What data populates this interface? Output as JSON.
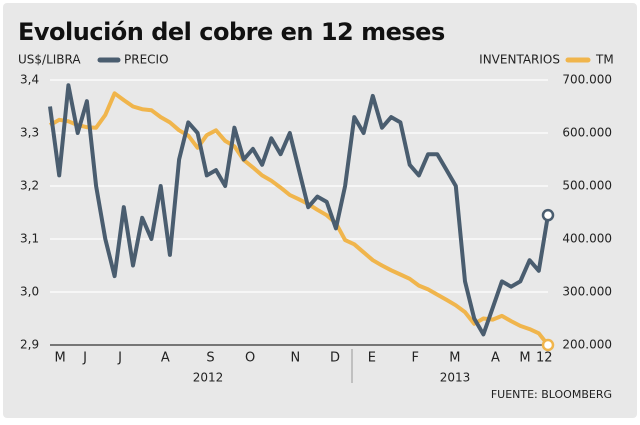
{
  "chart_data": {
    "type": "line",
    "title": "Evolución del cobre en 12 meses",
    "ylabel": "US$/LIBRA",
    "y2label": "TM",
    "source": "FUENTE: BLOOMBERG",
    "year_labels": [
      "2012",
      "2013"
    ],
    "x": [
      0,
      1,
      2,
      3,
      4,
      5,
      6,
      7,
      8,
      9,
      10,
      11,
      12,
      13,
      14,
      15,
      16,
      17,
      18,
      19,
      20,
      21,
      22,
      23,
      24,
      25,
      26,
      27,
      28,
      29,
      30,
      31,
      32,
      33,
      34,
      35,
      36,
      37,
      38,
      39,
      40,
      41,
      42,
      43,
      44,
      45,
      46,
      47,
      48,
      49,
      50,
      51,
      52,
      53,
      54
    ],
    "xlim": [
      0,
      54
    ],
    "xticks": [
      {
        "value": 1.1,
        "label": "M"
      },
      {
        "value": 3.8,
        "label": "J"
      },
      {
        "value": 7.6,
        "label": "J"
      },
      {
        "value": 12.5,
        "label": "A"
      },
      {
        "value": 17.4,
        "label": "S"
      },
      {
        "value": 21.7,
        "label": "O"
      },
      {
        "value": 26.6,
        "label": "N"
      },
      {
        "value": 30.9,
        "label": "D"
      },
      {
        "value": 34.9,
        "label": "E"
      },
      {
        "value": 39.6,
        "label": "F"
      },
      {
        "value": 43.9,
        "label": "M"
      },
      {
        "value": 48.3,
        "label": "A"
      },
      {
        "value": 51.5,
        "label": "M"
      },
      {
        "value": 53.6,
        "label": "12"
      }
    ],
    "ylim": [
      2.9,
      3.4
    ],
    "yticks": [
      {
        "value": 2.9,
        "label": "2,9"
      },
      {
        "value": 3.0,
        "label": "3,0"
      },
      {
        "value": 3.1,
        "label": "3,1"
      },
      {
        "value": 3.2,
        "label": "3,2"
      },
      {
        "value": 3.3,
        "label": "3,3"
      },
      {
        "value": 3.4,
        "label": "3,4"
      }
    ],
    "y2lim": [
      200000,
      700000
    ],
    "y2ticks": [
      {
        "value": 200000,
        "label": "200.000"
      },
      {
        "value": 300000,
        "label": "300.000"
      },
      {
        "value": 400000,
        "label": "400.000"
      },
      {
        "value": 500000,
        "label": "500.000"
      },
      {
        "value": 600000,
        "label": "600.000"
      },
      {
        "value": 700000,
        "label": "700.000"
      }
    ],
    "grid": true,
    "series": [
      {
        "name": "PRECIO",
        "color": "#4a5d6f",
        "values": [
          3.35,
          3.22,
          3.39,
          3.3,
          3.36,
          3.2,
          3.1,
          3.03,
          3.16,
          3.05,
          3.14,
          3.1,
          3.2,
          3.07,
          3.25,
          3.32,
          3.3,
          3.22,
          3.23,
          3.2,
          3.31,
          3.25,
          3.27,
          3.24,
          3.29,
          3.26,
          3.3,
          3.23,
          3.16,
          3.18,
          3.17,
          3.12,
          3.2,
          3.33,
          3.3,
          3.37,
          3.31,
          3.33,
          3.32,
          3.24,
          3.22,
          3.26,
          3.26,
          3.23,
          3.2,
          3.02,
          2.95,
          2.92,
          2.97,
          3.02,
          3.01,
          3.02,
          3.06,
          3.04,
          3.145
        ]
      },
      {
        "name": "INVENTARIOS",
        "color": "#f0b54c",
        "axis": "y2",
        "values": [
          615000,
          625000,
          622000,
          615000,
          611000,
          610000,
          634000,
          675000,
          662000,
          650000,
          645000,
          643000,
          630000,
          620000,
          605000,
          595000,
          572000,
          596000,
          605000,
          585000,
          575000,
          549000,
          535000,
          520000,
          510000,
          497000,
          483000,
          475000,
          466000,
          455000,
          445000,
          430000,
          398000,
          390000,
          375000,
          360000,
          350000,
          341000,
          333000,
          325000,
          312000,
          305000,
          295000,
          285000,
          275000,
          262000,
          240000,
          250000,
          248000,
          255000,
          245000,
          236000,
          230000,
          222000,
          200000
        ]
      }
    ]
  }
}
